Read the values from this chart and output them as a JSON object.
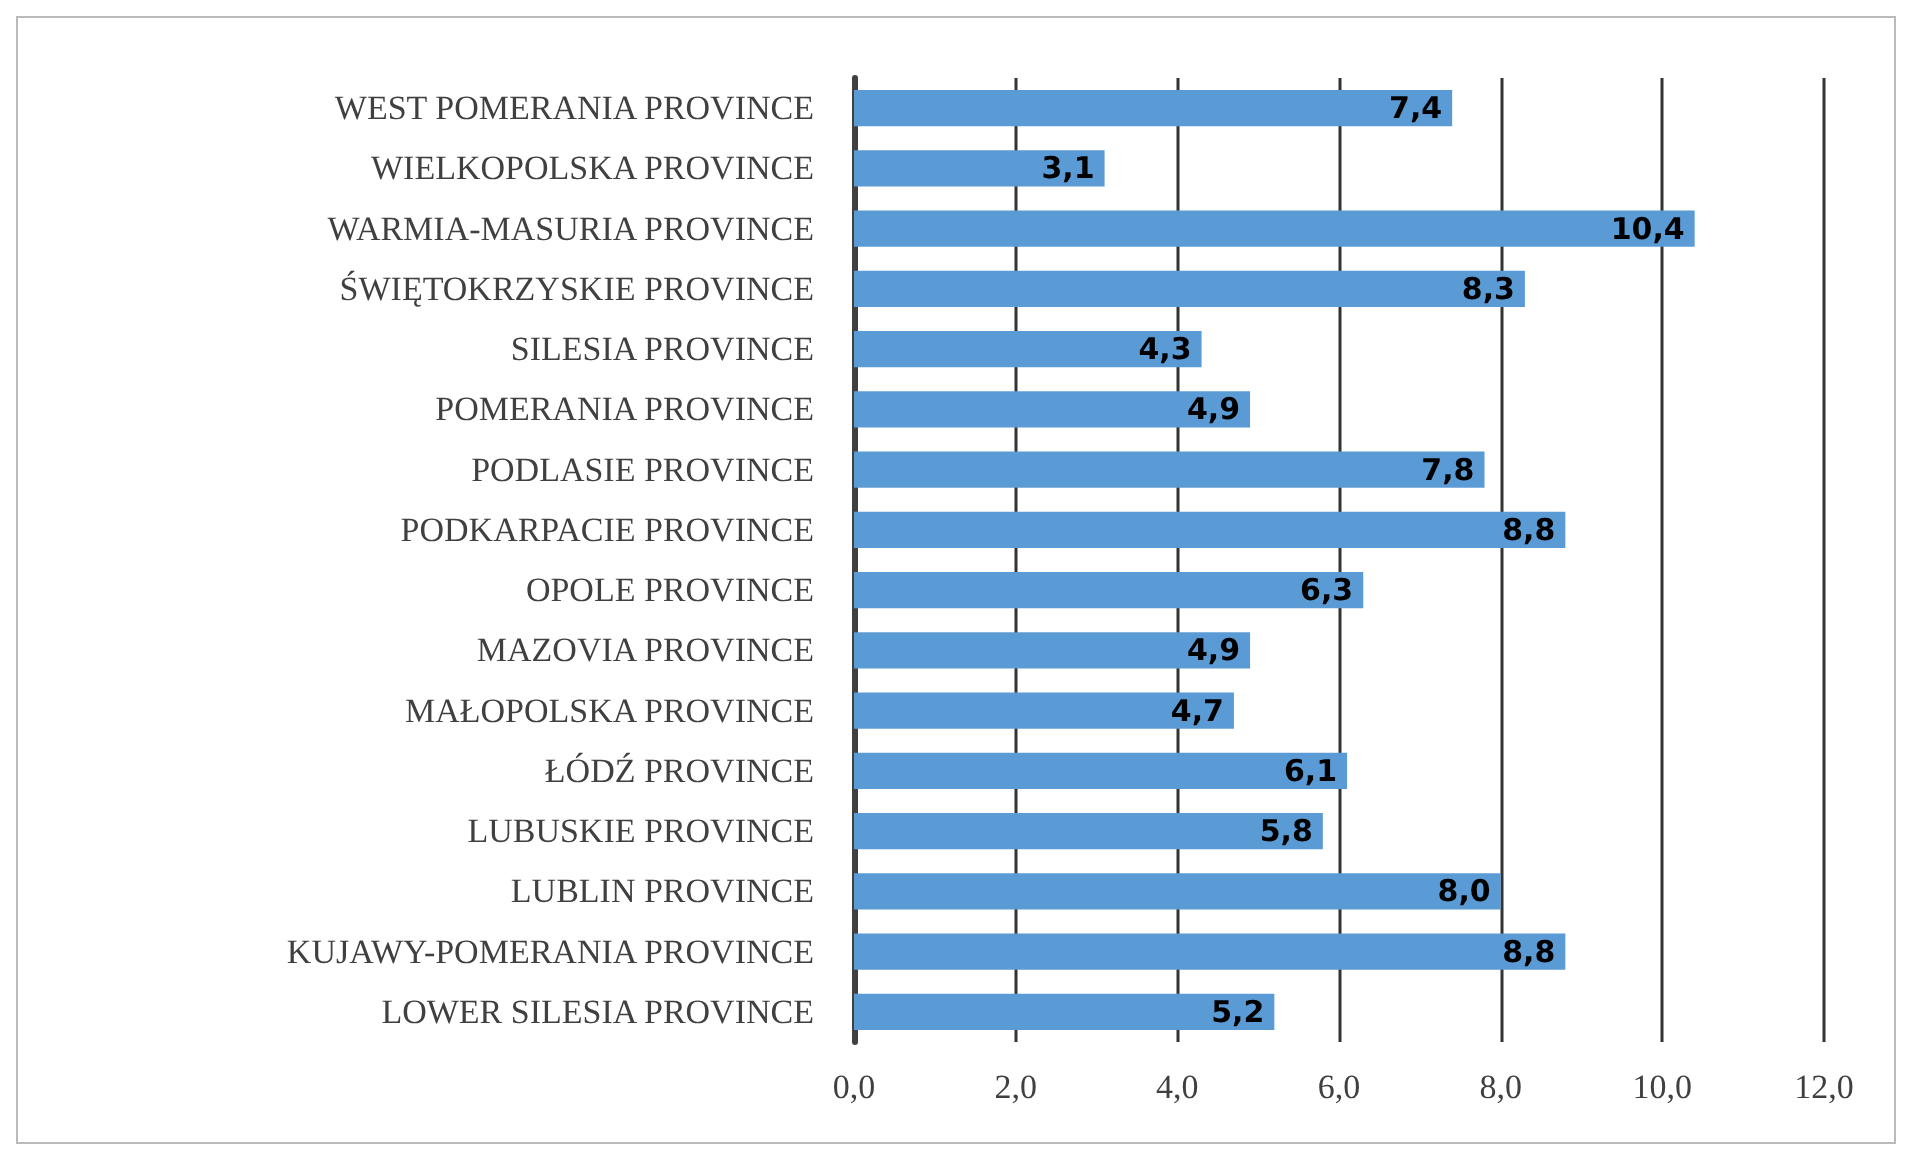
{
  "chart_data": {
    "type": "bar",
    "orientation": "horizontal",
    "categories": [
      "WEST POMERANIA PROVINCE",
      "WIELKOPOLSKA PROVINCE",
      "WARMIA-MASURIA PROVINCE",
      "ŚWIĘTOKRZYSKIE PROVINCE",
      "SILESIA PROVINCE",
      "POMERANIA PROVINCE",
      "PODLASIE PROVINCE",
      "PODKARPACIE PROVINCE",
      "OPOLE PROVINCE",
      "MAZOVIA PROVINCE",
      "MAŁOPOLSKA PROVINCE",
      "ŁÓDŹ PROVINCE",
      "LUBUSKIE PROVINCE",
      "LUBLIN PROVINCE",
      "KUJAWY-POMERANIA PROVINCE",
      "LOWER SILESIA PROVINCE"
    ],
    "values": [
      7.4,
      3.1,
      10.4,
      8.3,
      4.3,
      4.9,
      7.8,
      8.8,
      6.3,
      4.9,
      4.7,
      6.1,
      5.8,
      8.0,
      8.8,
      5.2
    ],
    "value_labels": [
      "7,4",
      "3,1",
      "10,4",
      "8,3",
      "4,3",
      "4,9",
      "7,8",
      "8,8",
      "6,3",
      "4,9",
      "4,7",
      "6,1",
      "5,8",
      "8,0",
      "8,8",
      "5,2"
    ],
    "color": "#5b9bd5",
    "xlim": [
      0,
      12
    ],
    "xticks": [
      {
        "value": 0,
        "label": "0,0"
      },
      {
        "value": 2,
        "label": "2,0"
      },
      {
        "value": 4,
        "label": "4,0"
      },
      {
        "value": 6,
        "label": "6,0"
      },
      {
        "value": 8,
        "label": "8,0"
      },
      {
        "value": 10,
        "label": "10,0"
      },
      {
        "value": 12,
        "label": "12,0"
      }
    ],
    "grid": "x"
  }
}
